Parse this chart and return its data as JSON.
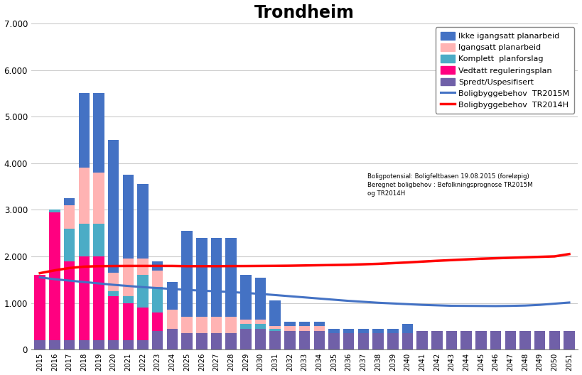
{
  "title": "Trondheim",
  "years": [
    2015,
    2016,
    2017,
    2018,
    2019,
    2020,
    2021,
    2022,
    2023,
    2024,
    2025,
    2026,
    2027,
    2028,
    2029,
    2030,
    2031,
    2032,
    2033,
    2034,
    2035,
    2036,
    2037,
    2038,
    2039,
    2040,
    2041,
    2042,
    2043,
    2044,
    2045,
    2046,
    2047,
    2048,
    2049,
    2050,
    2051
  ],
  "ikke_igangsatt": [
    0,
    0,
    150,
    1600,
    1700,
    2850,
    1800,
    1600,
    200,
    600,
    1850,
    1700,
    1700,
    1700,
    950,
    900,
    550,
    100,
    100,
    100,
    100,
    100,
    100,
    100,
    100,
    200,
    0,
    0,
    0,
    0,
    0,
    0,
    0,
    0,
    0,
    0,
    0
  ],
  "igangsatt": [
    0,
    0,
    500,
    1200,
    1100,
    400,
    800,
    350,
    350,
    400,
    350,
    350,
    350,
    350,
    100,
    100,
    50,
    100,
    100,
    100,
    0,
    0,
    0,
    0,
    0,
    0,
    0,
    0,
    0,
    0,
    0,
    0,
    0,
    0,
    0,
    0,
    0
  ],
  "komplett": [
    0,
    50,
    700,
    700,
    700,
    100,
    150,
    700,
    550,
    0,
    0,
    0,
    0,
    0,
    100,
    100,
    50,
    0,
    0,
    0,
    0,
    0,
    0,
    0,
    0,
    0,
    0,
    0,
    0,
    0,
    0,
    0,
    0,
    0,
    0,
    0,
    0
  ],
  "vedtatt": [
    1400,
    2750,
    1700,
    1800,
    1800,
    950,
    800,
    700,
    400,
    0,
    0,
    0,
    0,
    0,
    0,
    0,
    0,
    0,
    0,
    0,
    0,
    0,
    0,
    0,
    0,
    0,
    0,
    0,
    0,
    0,
    0,
    0,
    0,
    0,
    0,
    0,
    0
  ],
  "spredt": [
    200,
    200,
    200,
    200,
    200,
    200,
    200,
    200,
    400,
    450,
    350,
    350,
    350,
    350,
    450,
    450,
    400,
    400,
    400,
    400,
    350,
    350,
    350,
    350,
    350,
    350,
    400,
    400,
    400,
    400,
    400,
    400,
    400,
    400,
    400,
    400,
    400
  ],
  "line_tr2015m": [
    1550,
    1510,
    1480,
    1450,
    1420,
    1390,
    1365,
    1340,
    1320,
    1300,
    1280,
    1265,
    1250,
    1235,
    1215,
    1195,
    1170,
    1145,
    1120,
    1095,
    1070,
    1045,
    1025,
    1005,
    990,
    975,
    960,
    950,
    940,
    938,
    936,
    934,
    938,
    945,
    960,
    985,
    1010
  ],
  "line_tr2014h": [
    1640,
    1700,
    1750,
    1780,
    1790,
    1793,
    1795,
    1795,
    1795,
    1795,
    1790,
    1790,
    1790,
    1792,
    1793,
    1795,
    1797,
    1800,
    1805,
    1810,
    1815,
    1820,
    1830,
    1840,
    1855,
    1870,
    1888,
    1905,
    1920,
    1935,
    1950,
    1960,
    1970,
    1980,
    1990,
    2000,
    2050
  ],
  "color_ikke": "#4472C4",
  "color_igangsatt": "#FFB3B3",
  "color_komplett": "#4BACC6",
  "color_vedtatt": "#FF0080",
  "color_spredt": "#7060A8",
  "color_line_blue": "#4472C4",
  "color_line_red": "#FF0000",
  "ylim": [
    0,
    7000
  ],
  "yticks": [
    0,
    1000,
    2000,
    3000,
    4000,
    5000,
    6000,
    7000
  ],
  "annotation": "Boligpotensial: Boligfeltbasen 19.08.2015 (foreløpig)\nBeregnet boligbehov : Befolkningsprognose TR2015M\nog TR2014H",
  "legend_labels": [
    "Ikke igangsatt planarbeid",
    "Igangsatt planarbeid",
    "Komplett  planforslag",
    "Vedtatt reguleringsplan",
    "Spredt/Uspesifisert",
    "Boligbyggebehov  TR2015M",
    "Boligbyggebehov  TR2014H"
  ]
}
